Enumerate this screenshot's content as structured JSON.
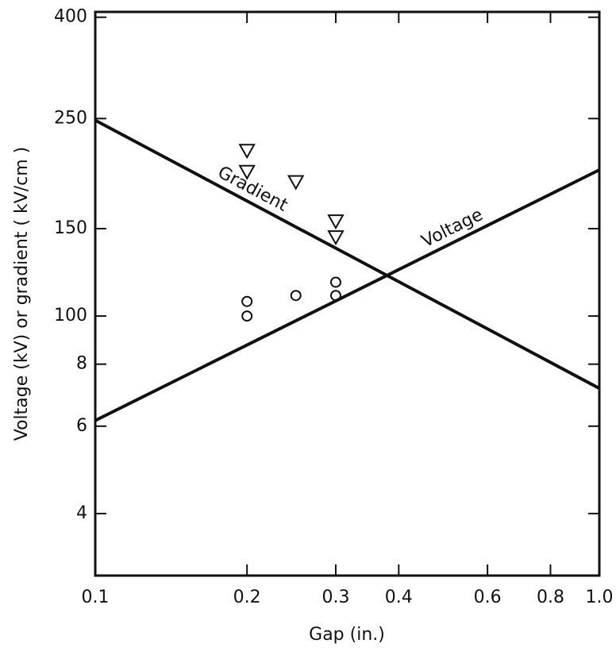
{
  "chart_data": {
    "type": "line",
    "xlabel": "Gap    (in.)",
    "ylabel": "Voltage   (kV)  or  gradient   ( kV/cm )",
    "xscale": "log",
    "yscale": "log",
    "xlim": [
      0.1,
      1.0
    ],
    "ylim": [
      30,
      410
    ],
    "xticks": [
      0.1,
      0.2,
      0.3,
      0.4,
      0.6,
      0.8,
      {
        "value": 1,
        "label": "1.0"
      }
    ],
    "yticks": [
      {
        "value": 40,
        "label": "4"
      },
      {
        "value": 60,
        "label": "6"
      },
      {
        "value": 80,
        "label": "8"
      },
      100,
      150,
      250,
      400
    ],
    "series": [
      {
        "name": "Gradient",
        "type": "line",
        "color": "#111111",
        "x": [
          0.1,
          1.0
        ],
        "values": [
          248,
          71.5
        ]
      },
      {
        "name": "Voltage",
        "type": "line",
        "color": "#111111",
        "x": [
          0.1,
          1.0
        ],
        "values": [
          61.6,
          197
        ]
      },
      {
        "type": "scatter",
        "marker": "triangle",
        "color": "#111111",
        "x": [
          0.2,
          0.2,
          0.25,
          0.3,
          0.3
        ],
        "values": [
          215,
          195,
          186,
          155,
          144
        ]
      },
      {
        "type": "scatter",
        "marker": "circle",
        "color": "#111111",
        "x": [
          0.2,
          0.2,
          0.25,
          0.3,
          0.3
        ],
        "values": [
          107,
          100,
          110,
          117,
          110
        ]
      }
    ]
  }
}
